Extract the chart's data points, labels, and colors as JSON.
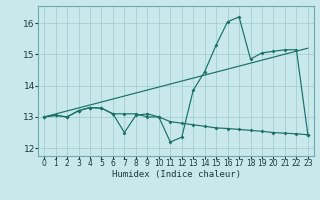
{
  "xlabel": "Humidex (Indice chaleur)",
  "xlim": [
    -0.5,
    23.5
  ],
  "ylim": [
    11.75,
    16.55
  ],
  "yticks": [
    12,
    13,
    14,
    15,
    16
  ],
  "xticks": [
    0,
    1,
    2,
    3,
    4,
    5,
    6,
    7,
    8,
    9,
    10,
    11,
    12,
    13,
    14,
    15,
    16,
    17,
    18,
    19,
    20,
    21,
    22,
    23
  ],
  "bg_color": "#c8e8ec",
  "grid_color": "#9ecacc",
  "line_color": "#1a7068",
  "trend_x": [
    0,
    23
  ],
  "trend_y": [
    13.0,
    15.2
  ],
  "lower_x": [
    0,
    1,
    2,
    3,
    4,
    5,
    6,
    7,
    8,
    9,
    10,
    11,
    12,
    13,
    14,
    15,
    16,
    17,
    18,
    19,
    20,
    21,
    22,
    23
  ],
  "lower_y": [
    13.0,
    13.05,
    13.0,
    13.2,
    13.3,
    13.28,
    13.1,
    13.1,
    13.1,
    13.0,
    13.0,
    12.85,
    12.8,
    12.75,
    12.7,
    12.65,
    12.63,
    12.6,
    12.57,
    12.54,
    12.5,
    12.48,
    12.46,
    12.43
  ],
  "main_x": [
    0,
    1,
    2,
    3,
    4,
    5,
    6,
    7,
    8,
    9,
    10,
    11,
    12,
    13,
    14,
    15,
    16,
    17,
    18,
    19,
    20,
    21,
    22,
    23
  ],
  "main_y": [
    13.0,
    13.05,
    13.0,
    13.2,
    13.3,
    13.28,
    13.1,
    12.5,
    13.05,
    13.1,
    13.0,
    12.2,
    12.35,
    13.85,
    14.45,
    15.3,
    16.05,
    16.2,
    14.85,
    15.05,
    15.1,
    15.15,
    15.15,
    12.43
  ]
}
